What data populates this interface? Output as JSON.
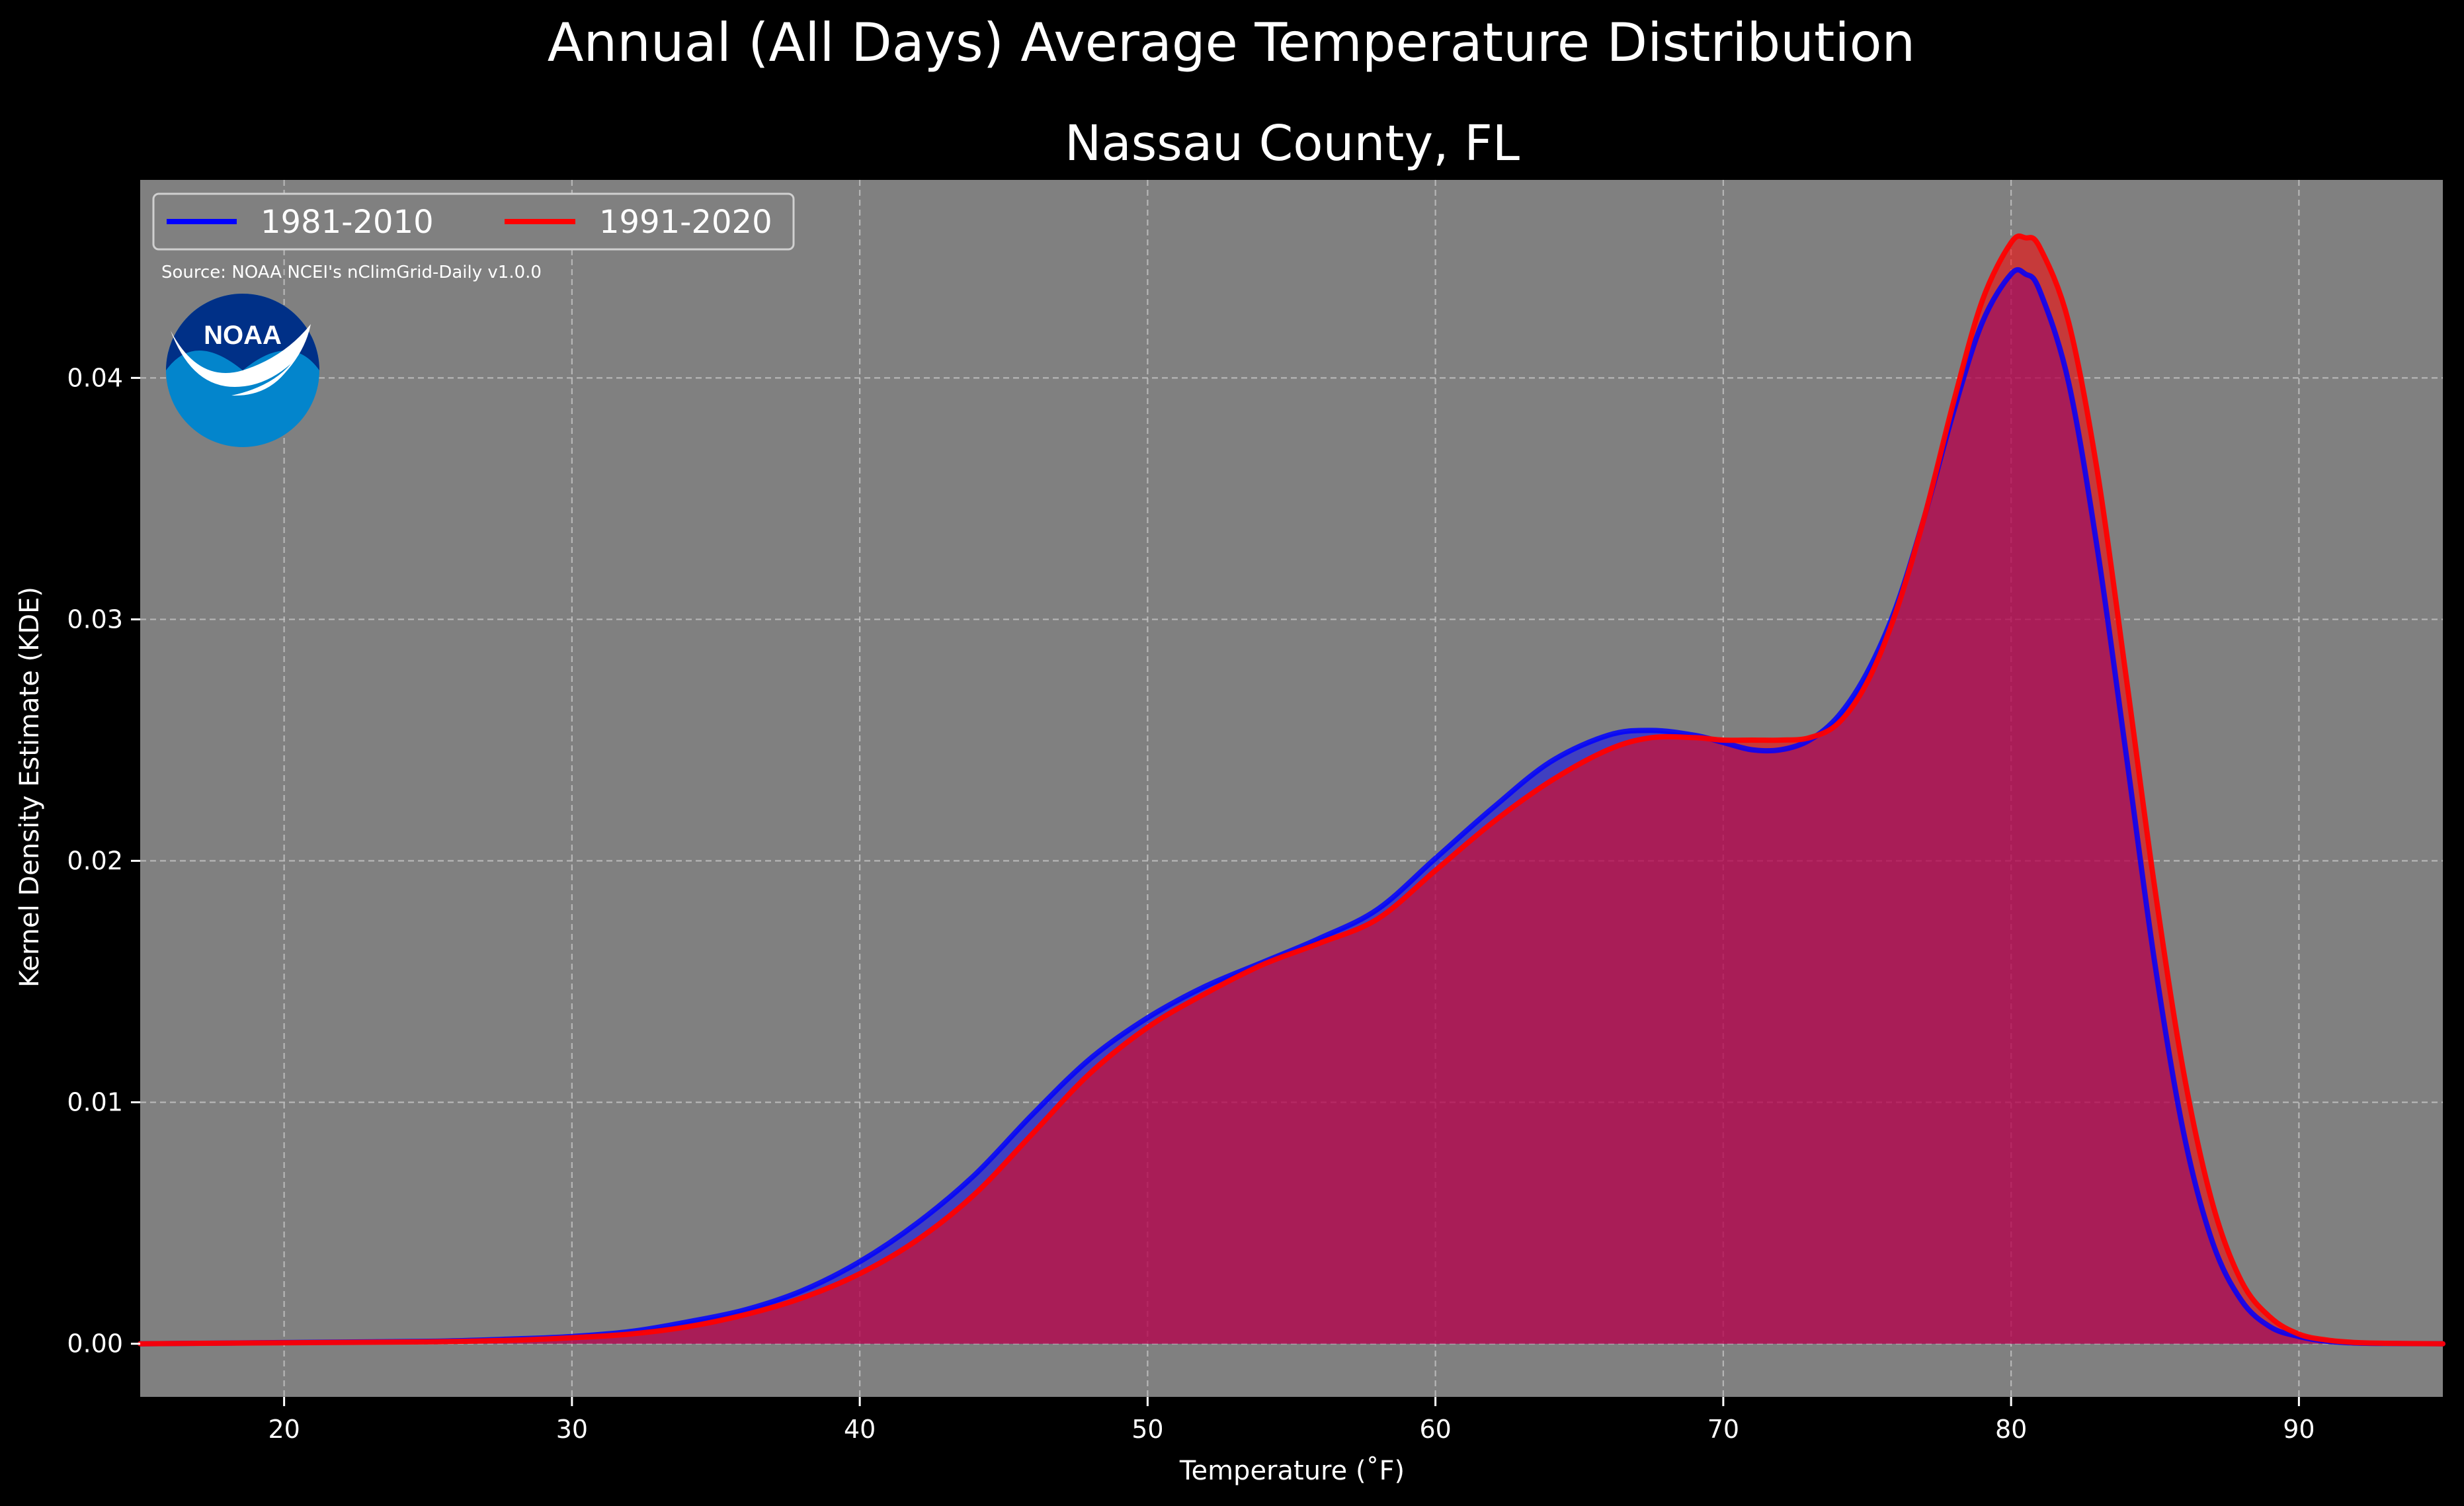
{
  "suptitle": "Annual (All Days) Average Temperature Distribution",
  "title": "Nassau County, FL",
  "source": "Source: NOAA NCEI's nClimGrid-Daily v1.0.0",
  "logo_text": "NOAA",
  "colors": {
    "background": "#000000",
    "plot_background": "#808080",
    "series_1981": "#0000ff",
    "series_1991": "#ff0000",
    "fill_overlap": "#9c1f5c"
  },
  "chart_data": {
    "type": "area",
    "xlabel": "Temperature ($^\\circ$F)",
    "xlabel_display": "Temperature (˚F)",
    "ylabel": "Kernel Density Estimate (KDE)",
    "xlim": [
      15,
      95
    ],
    "ylim": [
      -0.0022,
      0.0482
    ],
    "xticks": [
      20,
      30,
      40,
      50,
      60,
      70,
      80,
      90
    ],
    "yticks": [
      0.0,
      0.01,
      0.02,
      0.03,
      0.04
    ],
    "ytick_labels": [
      "0.00",
      "0.01",
      "0.02",
      "0.03",
      "0.04"
    ],
    "grid": true,
    "legend_position": "top-left",
    "x": [
      15,
      20,
      25,
      28,
      30,
      32,
      34,
      36,
      38,
      40,
      42,
      44,
      46,
      48,
      50,
      52,
      54,
      56,
      58,
      60,
      62,
      64,
      66,
      67.5,
      69,
      70,
      71,
      72,
      73,
      74,
      75,
      76,
      77,
      78,
      79,
      80,
      80.5,
      81,
      82,
      83,
      84,
      85,
      86,
      87,
      88,
      89,
      90,
      91,
      92,
      93,
      95
    ],
    "series": [
      {
        "name": "1981-2010",
        "values": [
          0.0,
          5e-05,
          0.0001,
          0.0002,
          0.0003,
          0.0005,
          0.0009,
          0.0014,
          0.0022,
          0.0034,
          0.005,
          0.007,
          0.0095,
          0.0118,
          0.0135,
          0.0148,
          0.0158,
          0.0168,
          0.018,
          0.0201,
          0.0222,
          0.0241,
          0.0252,
          0.0254,
          0.0252,
          0.0249,
          0.0246,
          0.0246,
          0.025,
          0.026,
          0.0278,
          0.0305,
          0.0343,
          0.0386,
          0.0423,
          0.0443,
          0.0443,
          0.0436,
          0.0398,
          0.0329,
          0.0244,
          0.0157,
          0.0087,
          0.0042,
          0.0018,
          0.0007,
          0.0003,
          0.0001,
          3e-05,
          1e-05,
          0.0
        ]
      },
      {
        "name": "1991-2020",
        "values": [
          0.0,
          4e-05,
          8e-05,
          0.00015,
          0.00025,
          0.0004,
          0.0007,
          0.0012,
          0.0019,
          0.0029,
          0.0043,
          0.0062,
          0.0087,
          0.0112,
          0.0131,
          0.0145,
          0.0157,
          0.0166,
          0.0176,
          0.0196,
          0.0216,
          0.0233,
          0.0246,
          0.0251,
          0.0251,
          0.025,
          0.025,
          0.025,
          0.0251,
          0.0257,
          0.0274,
          0.0303,
          0.0343,
          0.039,
          0.0432,
          0.0456,
          0.0458,
          0.0454,
          0.0423,
          0.0361,
          0.0276,
          0.0188,
          0.0112,
          0.0058,
          0.0026,
          0.0011,
          0.0004,
          0.00015,
          5e-05,
          2e-05,
          0.0
        ]
      }
    ]
  }
}
